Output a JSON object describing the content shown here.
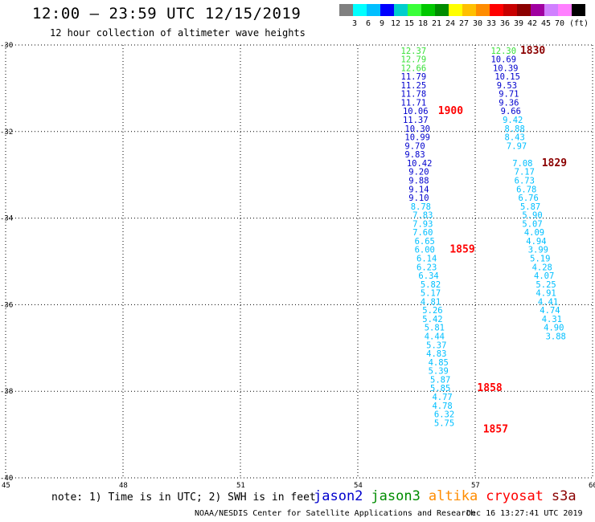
{
  "header": {
    "title": "12:00 — 23:59 UTC 12/15/2019",
    "subtitle": "12 hour collection of altimeter wave heights"
  },
  "legend": {
    "unit": "(ft)",
    "colors": [
      "#808080",
      "#00ffff",
      "#00bfff",
      "#0000ff",
      "#00cdcd",
      "#39ff39",
      "#00c800",
      "#008c00",
      "#ffff00",
      "#ffc000",
      "#ff8c00",
      "#ff0000",
      "#c80000",
      "#8b0000",
      "#a000a0",
      "#d080ff",
      "#ff80ff",
      "#000000"
    ],
    "labels": [
      "3",
      "6",
      "9",
      "12",
      "15",
      "18",
      "21",
      "24",
      "27",
      "30",
      "33",
      "36",
      "39",
      "42",
      "45",
      "70"
    ]
  },
  "map": {
    "lat_labels": [
      "-30",
      "-32",
      "-34",
      "-36",
      "-38",
      "-40"
    ],
    "lon_labels": [
      "45",
      "48",
      "51",
      "54",
      "57",
      "60"
    ],
    "lat_values": [
      -30,
      -32,
      -34,
      -36,
      -38,
      -40
    ],
    "lon_values": [
      45,
      48,
      51,
      54,
      57,
      60
    ]
  },
  "chart_data": {
    "type": "scatter",
    "xlabel": "",
    "ylabel": "",
    "xlim": [
      45,
      60
    ],
    "ylim": [
      -40,
      -30
    ],
    "tracks": [
      {
        "time_label": "1900",
        "satellite": "cryosat",
        "points": [
          {
            "lon": 55.1,
            "lat": -30.2,
            "swh": "12.37",
            "color": "#39e039"
          },
          {
            "lon": 55.1,
            "lat": -30.4,
            "swh": "12.79",
            "color": "#39e039"
          },
          {
            "lon": 55.1,
            "lat": -30.6,
            "swh": "12.66",
            "color": "#39e039"
          },
          {
            "lon": 55.1,
            "lat": -30.8,
            "swh": "11.79",
            "color": "#0000cd"
          },
          {
            "lon": 55.1,
            "lat": -31.0,
            "swh": "11.25",
            "color": "#0000cd"
          },
          {
            "lon": 55.1,
            "lat": -31.2,
            "swh": "11.78",
            "color": "#0000cd"
          },
          {
            "lon": 55.1,
            "lat": -31.4,
            "swh": "11.71",
            "color": "#0000cd"
          },
          {
            "lon": 55.15,
            "lat": -31.6,
            "swh": "10.06",
            "color": "#0000cd"
          },
          {
            "lon": 55.15,
            "lat": -31.8,
            "swh": "11.37",
            "color": "#0000cd"
          },
          {
            "lon": 55.2,
            "lat": -32.0,
            "swh": "10.30",
            "color": "#0000cd"
          },
          {
            "lon": 55.2,
            "lat": -32.2,
            "swh": "10.99",
            "color": "#0000cd"
          },
          {
            "lon": 55.2,
            "lat": -32.4,
            "swh": "9.70",
            "color": "#0000cd"
          },
          {
            "lon": 55.2,
            "lat": -32.6,
            "swh": "9.83",
            "color": "#0000cd"
          },
          {
            "lon": 55.25,
            "lat": -32.8,
            "swh": "10.42",
            "color": "#0000cd"
          },
          {
            "lon": 55.3,
            "lat": -33.0,
            "swh": "9.20",
            "color": "#0000cd"
          },
          {
            "lon": 55.3,
            "lat": -33.2,
            "swh": "9.88",
            "color": "#0000cd"
          },
          {
            "lon": 55.3,
            "lat": -33.4,
            "swh": "9.14",
            "color": "#0000cd"
          },
          {
            "lon": 55.3,
            "lat": -33.6,
            "swh": "9.10",
            "color": "#0000cd"
          },
          {
            "lon": 55.35,
            "lat": -33.8,
            "swh": "8.78",
            "color": "#00bfff"
          },
          {
            "lon": 55.4,
            "lat": -34.0,
            "swh": "7.83",
            "color": "#00bfff"
          },
          {
            "lon": 55.4,
            "lat": -34.2,
            "swh": "7.93",
            "color": "#00bfff"
          },
          {
            "lon": 55.4,
            "lat": -34.4,
            "swh": "7.60",
            "color": "#00bfff"
          },
          {
            "lon": 55.45,
            "lat": -34.6,
            "swh": "6.65",
            "color": "#00bfff"
          },
          {
            "lon": 55.45,
            "lat": -34.8,
            "swh": "6.00",
            "color": "#00bfff"
          },
          {
            "lon": 55.5,
            "lat": -35.0,
            "swh": "6.14",
            "color": "#00bfff"
          },
          {
            "lon": 55.5,
            "lat": -35.2,
            "swh": "6.23",
            "color": "#00bfff"
          },
          {
            "lon": 55.55,
            "lat": -35.4,
            "swh": "6.34",
            "color": "#00bfff"
          },
          {
            "lon": 55.6,
            "lat": -35.6,
            "swh": "5.82",
            "color": "#00bfff"
          },
          {
            "lon": 55.6,
            "lat": -35.8,
            "swh": "5.17",
            "color": "#00bfff"
          },
          {
            "lon": 55.6,
            "lat": -36.0,
            "swh": "4.81",
            "color": "#00bfff"
          },
          {
            "lon": 55.65,
            "lat": -36.2,
            "swh": "5.26",
            "color": "#00bfff"
          },
          {
            "lon": 55.65,
            "lat": -36.4,
            "swh": "5.42",
            "color": "#00bfff"
          },
          {
            "lon": 55.7,
            "lat": -36.6,
            "swh": "5.81",
            "color": "#00bfff"
          },
          {
            "lon": 55.7,
            "lat": -36.8,
            "swh": "4.44",
            "color": "#00bfff"
          },
          {
            "lon": 55.75,
            "lat": -37.0,
            "swh": "5.37",
            "color": "#00bfff"
          },
          {
            "lon": 55.75,
            "lat": -37.2,
            "swh": "4.83",
            "color": "#00bfff"
          },
          {
            "lon": 55.8,
            "lat": -37.4,
            "swh": "4.85",
            "color": "#00bfff"
          },
          {
            "lon": 55.8,
            "lat": -37.6,
            "swh": "5.39",
            "color": "#00bfff"
          },
          {
            "lon": 55.85,
            "lat": -37.8,
            "swh": "5.87",
            "color": "#00bfff"
          },
          {
            "lon": 55.85,
            "lat": -38.0,
            "swh": "5.85",
            "color": "#00bfff"
          },
          {
            "lon": 55.9,
            "lat": -38.2,
            "swh": "4.77",
            "color": "#00bfff"
          },
          {
            "lon": 55.9,
            "lat": -38.4,
            "swh": "4.78",
            "color": "#00bfff"
          },
          {
            "lon": 55.95,
            "lat": -38.6,
            "swh": "6.32",
            "color": "#00bfff"
          },
          {
            "lon": 55.95,
            "lat": -38.8,
            "swh": "5.75",
            "color": "#00bfff"
          }
        ]
      },
      {
        "time_label": "1830",
        "satellite": "s3a",
        "points": [
          {
            "lon": 57.4,
            "lat": -30.2,
            "swh": "12.30",
            "color": "#39e039"
          },
          {
            "lon": 57.4,
            "lat": -30.4,
            "swh": "10.69",
            "color": "#0000cd"
          },
          {
            "lon": 57.45,
            "lat": -30.6,
            "swh": "10.39",
            "color": "#0000cd"
          },
          {
            "lon": 57.5,
            "lat": -30.8,
            "swh": "10.15",
            "color": "#0000cd"
          },
          {
            "lon": 57.55,
            "lat": -31.0,
            "swh": "9.53",
            "color": "#0000cd"
          },
          {
            "lon": 57.6,
            "lat": -31.2,
            "swh": "9.71",
            "color": "#0000cd"
          },
          {
            "lon": 57.6,
            "lat": -31.4,
            "swh": "9.36",
            "color": "#0000cd"
          },
          {
            "lon": 57.65,
            "lat": -31.6,
            "swh": "9.66",
            "color": "#0000cd"
          },
          {
            "lon": 57.7,
            "lat": -31.8,
            "swh": "9.42",
            "color": "#00bfff"
          },
          {
            "lon": 57.75,
            "lat": -32.0,
            "swh": "8.88",
            "color": "#00bfff"
          },
          {
            "lon": 57.75,
            "lat": -32.2,
            "swh": "8.43",
            "color": "#00bfff"
          },
          {
            "lon": 57.8,
            "lat": -32.4,
            "swh": "7.97",
            "color": "#00bfff"
          },
          {
            "lon": 57.95,
            "lat": -32.8,
            "swh": "7.08",
            "color": "#00bfff"
          },
          {
            "lon": 58.0,
            "lat": -33.0,
            "swh": "7.17",
            "color": "#00bfff"
          },
          {
            "lon": 58.0,
            "lat": -33.2,
            "swh": "6.73",
            "color": "#00bfff"
          },
          {
            "lon": 58.05,
            "lat": -33.4,
            "swh": "6.78",
            "color": "#00bfff"
          },
          {
            "lon": 58.1,
            "lat": -33.6,
            "swh": "6.76",
            "color": "#00bfff"
          },
          {
            "lon": 58.15,
            "lat": -33.8,
            "swh": "5.87",
            "color": "#00bfff"
          },
          {
            "lon": 58.2,
            "lat": -34.0,
            "swh": "5.90",
            "color": "#00bfff"
          },
          {
            "lon": 58.2,
            "lat": -34.2,
            "swh": "5.07",
            "color": "#00bfff"
          },
          {
            "lon": 58.25,
            "lat": -34.4,
            "swh": "4.09",
            "color": "#00bfff"
          },
          {
            "lon": 58.3,
            "lat": -34.6,
            "swh": "4.94",
            "color": "#00bfff"
          },
          {
            "lon": 58.35,
            "lat": -34.8,
            "swh": "3.99",
            "color": "#00bfff"
          },
          {
            "lon": 58.4,
            "lat": -35.0,
            "swh": "5.19",
            "color": "#00bfff"
          },
          {
            "lon": 58.45,
            "lat": -35.2,
            "swh": "4.28",
            "color": "#00bfff"
          },
          {
            "lon": 58.5,
            "lat": -35.4,
            "swh": "4.07",
            "color": "#00bfff"
          },
          {
            "lon": 58.55,
            "lat": -35.6,
            "swh": "5.25",
            "color": "#00bfff"
          },
          {
            "lon": 58.55,
            "lat": -35.8,
            "swh": "4.91",
            "color": "#00bfff"
          },
          {
            "lon": 58.6,
            "lat": -36.0,
            "swh": "4.41",
            "color": "#00bfff"
          },
          {
            "lon": 58.65,
            "lat": -36.2,
            "swh": "4.74",
            "color": "#00bfff"
          },
          {
            "lon": 58.7,
            "lat": -36.4,
            "swh": "4.31",
            "color": "#00bfff"
          },
          {
            "lon": 58.75,
            "lat": -36.6,
            "swh": "4.90",
            "color": "#00bfff"
          },
          {
            "lon": 58.8,
            "lat": -36.8,
            "swh": "3.88",
            "color": "#00bfff"
          }
        ]
      }
    ],
    "time_labels": [
      {
        "text": "1830",
        "color": "#8b0000"
      },
      {
        "text": "1900",
        "color": "#ff0000"
      },
      {
        "text": "1829",
        "color": "#8b0000"
      },
      {
        "text": "1859",
        "color": "#ff0000"
      },
      {
        "text": "1858",
        "color": "#ff0000"
      },
      {
        "text": "1857",
        "color": "#ff0000"
      }
    ]
  },
  "note": "note: 1) Time is in UTC; 2) SWH is in feet",
  "satellites": [
    {
      "name": "jason2",
      "color": "#0000cd"
    },
    {
      "name": "jason3",
      "color": "#008c00"
    },
    {
      "name": "altika",
      "color": "#ff8c00"
    },
    {
      "name": "cryosat",
      "color": "#ff0000"
    },
    {
      "name": "s3a",
      "color": "#8b0000"
    }
  ],
  "footer": {
    "center": "NOAA/NESDIS Center for Satellite Applications and Research",
    "right": "Dec 16 13:27:41 UTC 2019"
  }
}
